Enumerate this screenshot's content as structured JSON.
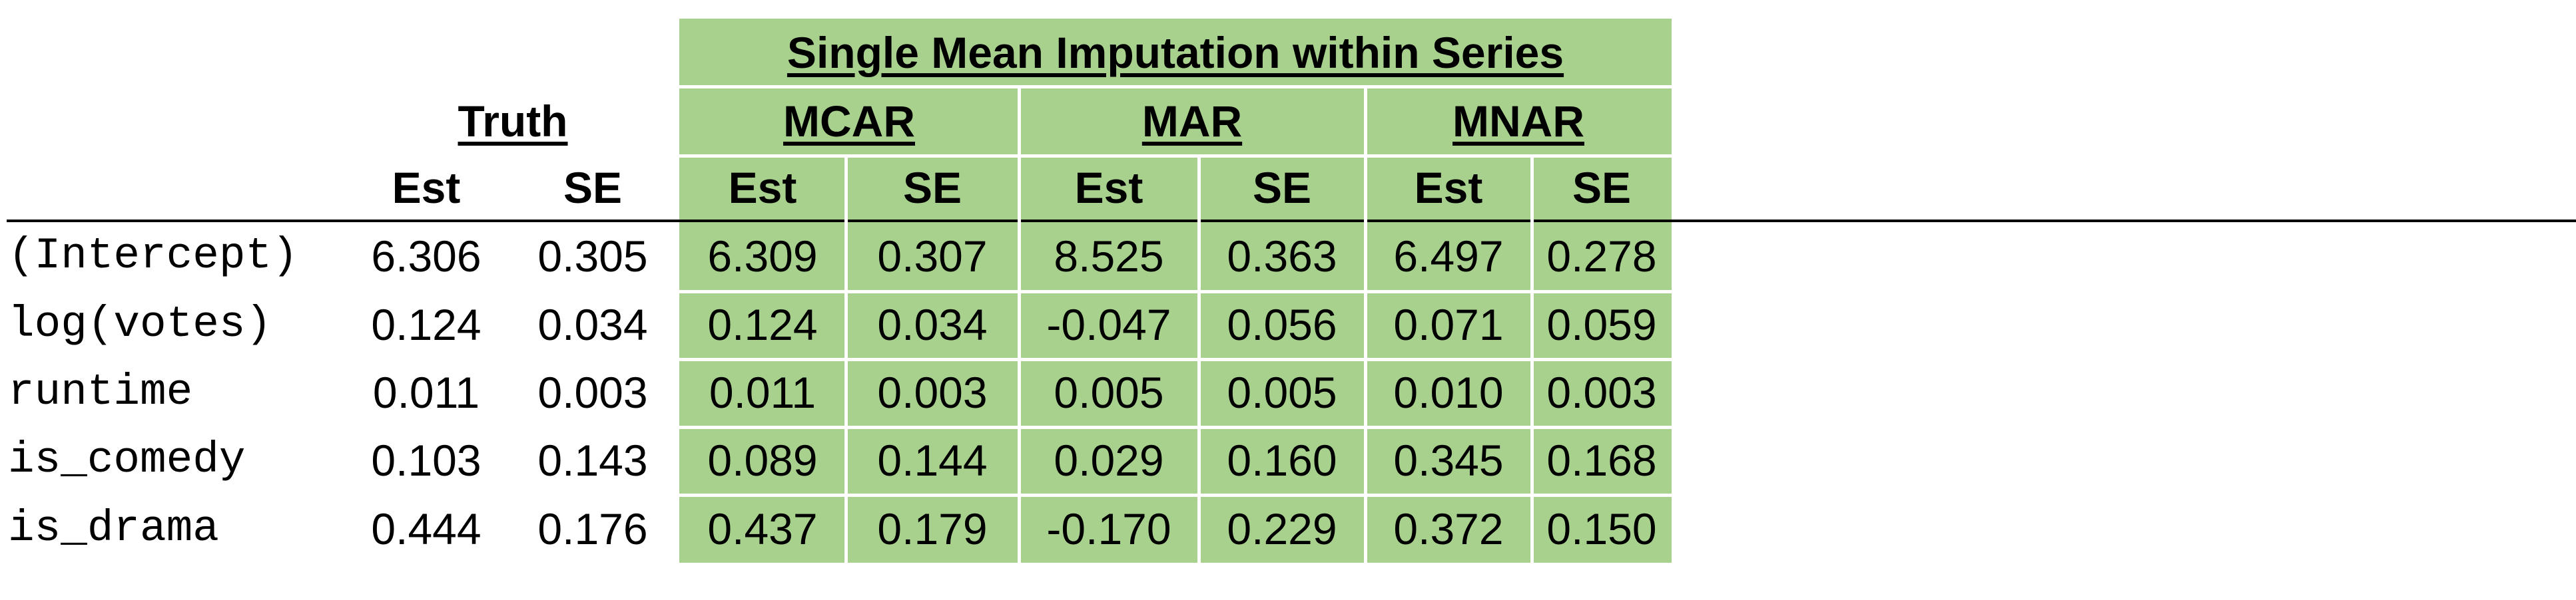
{
  "header": {
    "group_title": "Single Mean Imputation within Series",
    "truth_label": "Truth",
    "mcar_label": "MCAR",
    "mar_label": "MAR",
    "mnar_label": "MNAR",
    "columns": [
      "Est",
      "SE",
      "Est",
      "SE",
      "Est",
      "SE",
      "Est",
      "SE"
    ]
  },
  "rows": [
    {
      "term": "(Intercept)",
      "values": [
        "6.306",
        "0.305",
        "6.309",
        "0.307",
        "8.525",
        "0.363",
        "6.497",
        "0.278"
      ]
    },
    {
      "term": "log(votes)",
      "values": [
        "0.124",
        "0.034",
        "0.124",
        "0.034",
        "-0.047",
        "0.056",
        "0.071",
        "0.059"
      ]
    },
    {
      "term": "runtime",
      "values": [
        "0.011",
        "0.003",
        "0.011",
        "0.003",
        "0.005",
        "0.005",
        "0.010",
        "0.003"
      ]
    },
    {
      "term": "is_comedy",
      "values": [
        "0.103",
        "0.143",
        "0.089",
        "0.144",
        "0.029",
        "0.160",
        "0.345",
        "0.168"
      ]
    },
    {
      "term": "is_drama",
      "values": [
        "0.444",
        "0.176",
        "0.437",
        "0.179",
        "-0.170",
        "0.229",
        "0.372",
        "0.150"
      ]
    }
  ],
  "colors": {
    "imputation_fill": "#a9d18e",
    "rule": "#000000"
  }
}
